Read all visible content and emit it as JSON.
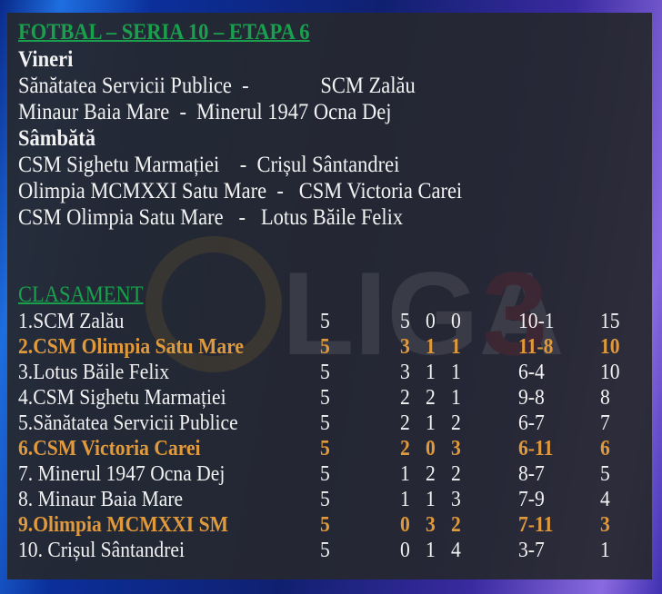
{
  "title": "FOTBAL – SERIA 10 – ETAPA 6",
  "days": [
    {
      "label": "Vineri",
      "matches": [
        "Sănătatea Servicii Publice  -              SCM Zalău",
        "Minaur Baia Mare  -  Minerul 1947 Ocna Dej"
      ]
    },
    {
      "label": "Sâmbătă",
      "matches": [
        "CSM Sighetu Marmației    -  Crișul Sântandrei",
        "Olimpia MCMXXI Satu Mare  -   CSM Victoria Carei",
        "CSM Olimpia Satu Mare   -   Lotus Băile Felix"
      ]
    }
  ],
  "standings_title": "CLASAMENT",
  "highlight_color": "#e09a3c",
  "title_color": "#1aa04c",
  "standings": [
    {
      "team": "1.SCM Zalău",
      "played": "5",
      "w": "5",
      "d": "0",
      "l": "0",
      "goals": "10-1",
      "pts": "15",
      "highlight": false
    },
    {
      "team": "2.CSM Olimpia Satu Mare",
      "played": "5",
      "w": "3",
      "d": "1",
      "l": "1",
      "goals": "11-8",
      "pts": "10",
      "highlight": true
    },
    {
      "team": "3.Lotus Băile Felix",
      "played": "5",
      "w": "3",
      "d": "1",
      "l": "1",
      "goals": "6-4",
      "pts": "10",
      "highlight": false
    },
    {
      "team": "4.CSM Sighetu Marmației",
      "played": "5",
      "w": "2",
      "d": "2",
      "l": "1",
      "goals": "9-8",
      "pts": "8",
      "highlight": false
    },
    {
      "team": "5.Sănătatea Servicii Publice",
      "played": "5",
      "w": "2",
      "d": "1",
      "l": "2",
      "goals": "6-7",
      "pts": "7",
      "highlight": false
    },
    {
      "team": "6.CSM Victoria Carei",
      "played": "5",
      "w": "2",
      "d": "0",
      "l": "3",
      "goals": "6-11",
      "pts": "6",
      "highlight": true
    },
    {
      "team": "7. Minerul 1947 Ocna Dej",
      "played": "5",
      "w": "1",
      "d": "2",
      "l": "2",
      "goals": "8-7",
      "pts": "5",
      "highlight": false
    },
    {
      "team": "8. Minaur Baia Mare",
      "played": "5",
      "w": "1",
      "d": "1",
      "l": "3",
      "goals": "7-9",
      "pts": "4",
      "highlight": false
    },
    {
      "team": "9.Olimpia MCMXXI SM",
      "played": "5",
      "w": "0",
      "d": "3",
      "l": "2",
      "goals": "7-11",
      "pts": "3",
      "highlight": true
    },
    {
      "team": "10. Crișul Sântandrei",
      "played": "5",
      "w": "0",
      "d": "1",
      "l": "4",
      "goals": "3-7",
      "pts": "1",
      "highlight": false
    }
  ]
}
